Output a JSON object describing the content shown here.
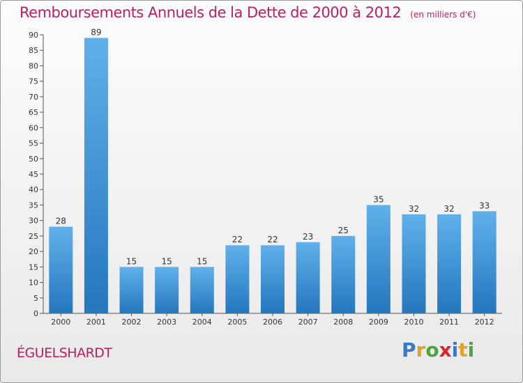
{
  "header": {
    "title": "Remboursements Annuels de la Dette de 2000 à 2012",
    "subtitle": "(en milliers d'€)"
  },
  "footer": {
    "commune": "ÉGUELSHARDT",
    "logo_letters": [
      "P",
      "r",
      "o",
      "x",
      "i",
      "t",
      "i"
    ]
  },
  "colors": {
    "title": "#b5225f",
    "bar_top": "#5fb0ea",
    "bar_bottom": "#2577bd",
    "logo": [
      "#3a78c9",
      "#e2a12a",
      "#4aa63c",
      "#d9262b",
      "#3a78c9",
      "#e2a12a",
      "#4aa63c"
    ]
  },
  "chart_data": {
    "type": "bar",
    "title": "Remboursements Annuels de la Dette de 2000 à 2012",
    "xlabel": "",
    "ylabel": "",
    "ylim": [
      0,
      90
    ],
    "yticks": [
      0,
      5,
      10,
      15,
      20,
      25,
      30,
      35,
      40,
      45,
      50,
      55,
      60,
      65,
      70,
      75,
      80,
      85,
      90
    ],
    "grid": false,
    "categories": [
      "2000",
      "2001",
      "2002",
      "2003",
      "2004",
      "2005",
      "2006",
      "2007",
      "2008",
      "2009",
      "2010",
      "2011",
      "2012"
    ],
    "values": [
      28,
      89,
      15,
      15,
      15,
      22,
      22,
      23,
      25,
      35,
      32,
      32,
      33
    ],
    "data_labels": [
      "28",
      "89",
      "15",
      "15",
      "15",
      "22",
      "22",
      "23",
      "25",
      "35",
      "32",
      "32",
      "33"
    ]
  }
}
